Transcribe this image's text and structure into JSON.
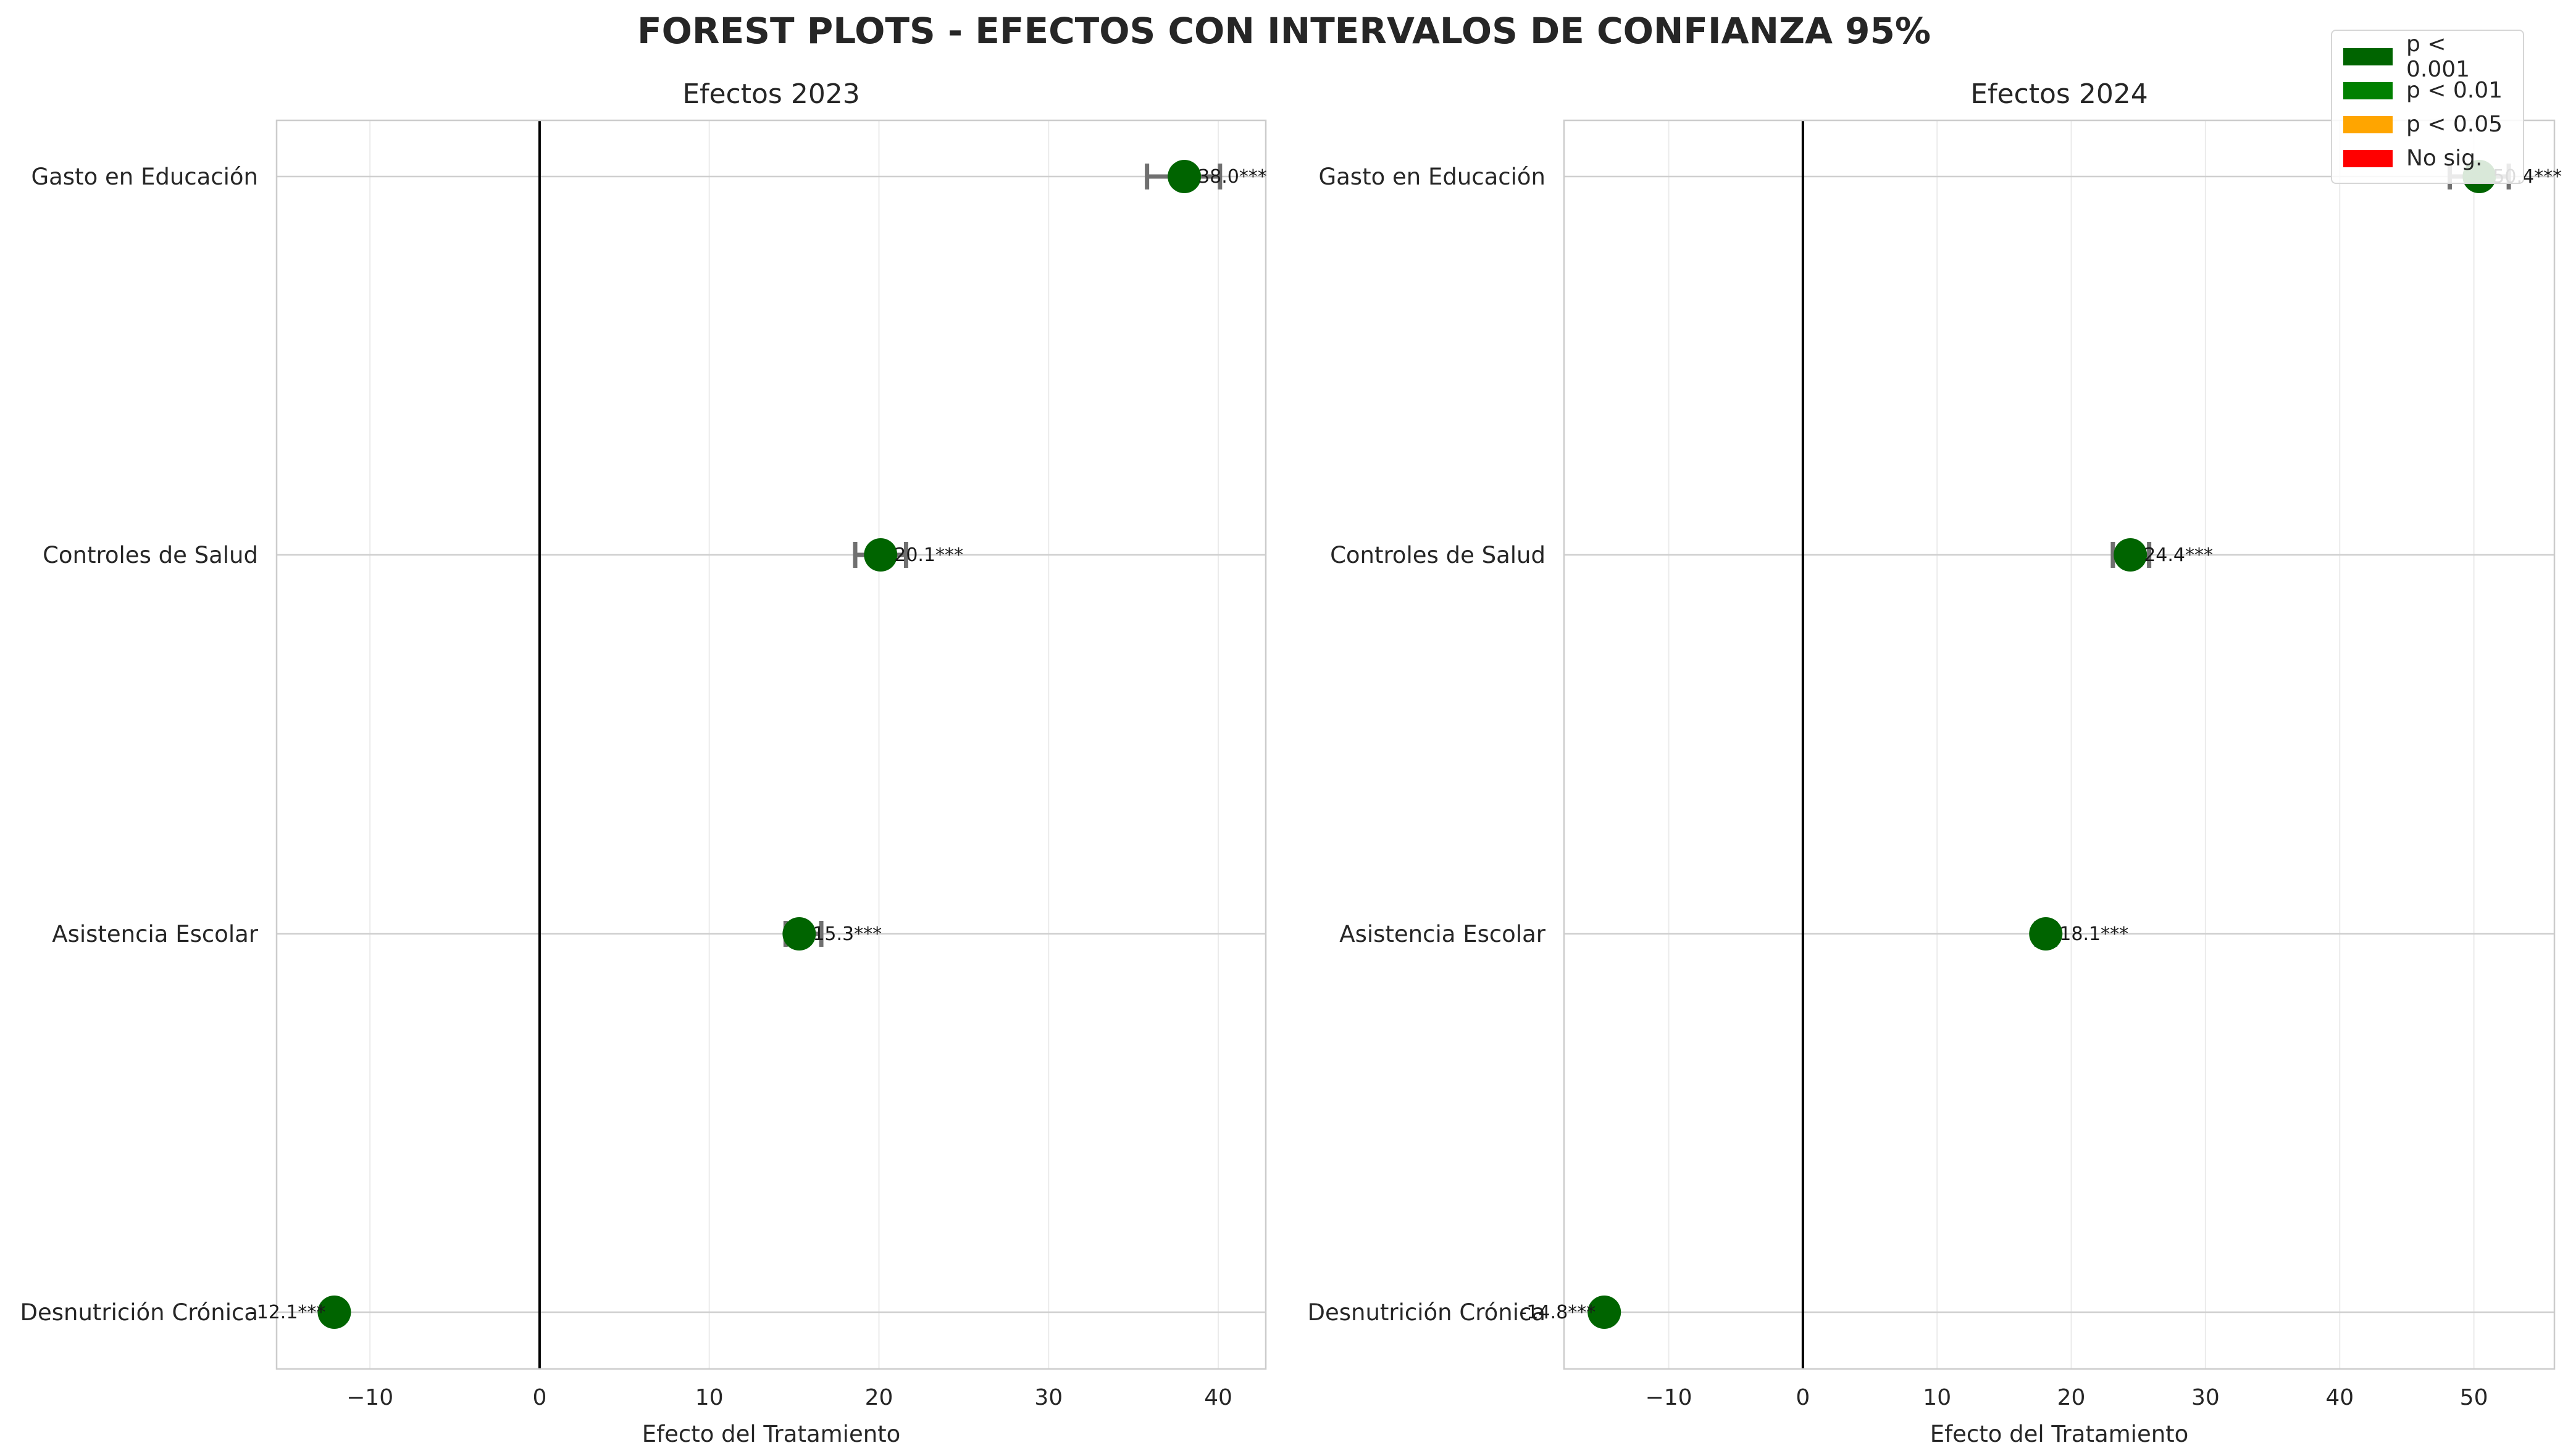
{
  "title": "FOREST PLOTS - EFECTOS CON INTERVALOS DE CONFIANZA 95%",
  "legend": [
    {
      "label": "p < 0.001",
      "color": "#006400"
    },
    {
      "label": "p < 0.01",
      "color": "#008000"
    },
    {
      "label": "p < 0.05",
      "color": "#FFA500"
    },
    {
      "label": "No sig.",
      "color": "#FF0000"
    }
  ],
  "chart_data": [
    {
      "type": "scatter",
      "title": "Efectos 2023",
      "xlabel": "Efecto del Tratamiento",
      "ylabel": "",
      "xlim": [
        -15.5,
        42.8
      ],
      "xticks": [
        -10,
        0,
        10,
        20,
        30,
        40
      ],
      "xtick_labels": [
        "−10",
        "0",
        "10",
        "20",
        "30",
        "40"
      ],
      "reference_line": 0,
      "grid": true,
      "categories": [
        "Gasto en Educación",
        "Controles de Salud",
        "Asistencia Escolar",
        "Desnutrición Crónica"
      ],
      "points": [
        {
          "category": "Gasto en Educación",
          "value": 38.0,
          "ci": [
            35.8,
            40.1
          ],
          "label": "38.0***",
          "significance": "p < 0.001",
          "color": "#006400"
        },
        {
          "category": "Controles de Salud",
          "value": 20.1,
          "ci": [
            18.6,
            21.6
          ],
          "label": "20.1***",
          "significance": "p < 0.001",
          "color": "#006400"
        },
        {
          "category": "Asistencia Escolar",
          "value": 15.3,
          "ci": [
            14.5,
            16.6
          ],
          "label": "15.3***",
          "significance": "p < 0.001",
          "color": "#006400"
        },
        {
          "category": "Desnutrición Crónica",
          "value": -12.1,
          "ci": [
            -12.3,
            -11.9
          ],
          "label": "-12.1***",
          "significance": "p < 0.001",
          "color": "#006400"
        }
      ]
    },
    {
      "type": "scatter",
      "title": "Efectos 2024",
      "xlabel": "Efecto del Tratamiento",
      "ylabel": "",
      "xlim": [
        -17.8,
        56.0
      ],
      "xticks": [
        -10,
        0,
        10,
        20,
        30,
        40,
        50
      ],
      "xtick_labels": [
        "−10",
        "0",
        "10",
        "20",
        "30",
        "40",
        "50"
      ],
      "reference_line": 0,
      "grid": true,
      "categories": [
        "Gasto en Educación",
        "Controles de Salud",
        "Asistencia Escolar",
        "Desnutrición Crónica"
      ],
      "points": [
        {
          "category": "Gasto en Educación",
          "value": 50.4,
          "ci": [
            48.2,
            52.6
          ],
          "label": "50.4***",
          "significance": "p < 0.001",
          "color": "#006400"
        },
        {
          "category": "Controles de Salud",
          "value": 24.4,
          "ci": [
            23.1,
            25.8
          ],
          "label": "24.4***",
          "significance": "p < 0.001",
          "color": "#006400"
        },
        {
          "category": "Asistencia Escolar",
          "value": 18.1,
          "ci": [
            17.4,
            18.8
          ],
          "label": "18.1***",
          "significance": "p < 0.001",
          "color": "#006400"
        },
        {
          "category": "Desnutrición Crónica",
          "value": -14.8,
          "ci": [
            -15.0,
            -14.6
          ],
          "label": "-14.8***",
          "significance": "p < 0.001",
          "color": "#006400"
        }
      ]
    }
  ]
}
